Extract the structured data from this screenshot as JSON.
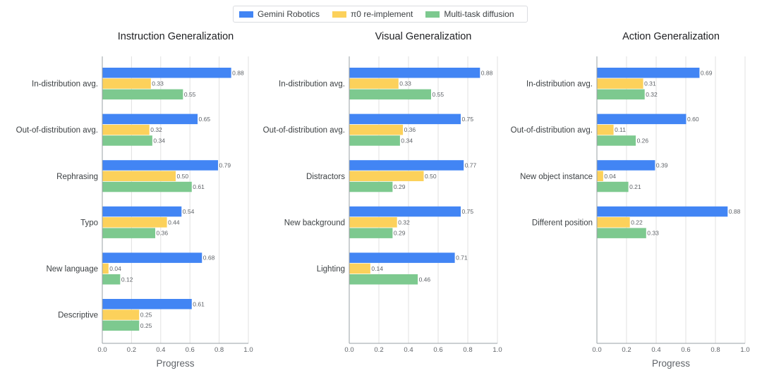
{
  "legend": [
    {
      "name": "Gemini Robotics",
      "color": "#4285f4"
    },
    {
      "name": "π0 re-implement",
      "color": "#fcd15b"
    },
    {
      "name": "Multi-task diffusion",
      "color": "#7dc98f"
    }
  ],
  "chart_data": [
    {
      "type": "bar",
      "orientation": "horizontal",
      "title": "Instruction Generalization",
      "xlabel": "Progress",
      "xlim": [
        0,
        1.0
      ],
      "xticks": [
        "0.0",
        "0.2",
        "0.4",
        "0.6",
        "0.8",
        "1.0"
      ],
      "grid": true,
      "categories": [
        "In-distribution avg.",
        "Out-of-distribution avg.",
        "Rephrasing",
        "Typo",
        "New language",
        "Descriptive"
      ],
      "series": [
        {
          "name": "Gemini Robotics",
          "values": [
            0.88,
            0.65,
            0.79,
            0.54,
            0.68,
            0.61
          ],
          "labels": [
            "0.88",
            "0.65",
            "0.79",
            "0.54",
            "0.68",
            "0.61"
          ]
        },
        {
          "name": "π0 re-implement",
          "values": [
            0.33,
            0.32,
            0.5,
            0.44,
            0.04,
            0.25
          ],
          "labels": [
            "0.33",
            "0.32",
            "0.50",
            "0.44",
            "0.04",
            "0.25"
          ]
        },
        {
          "name": "Multi-task diffusion",
          "values": [
            0.55,
            0.34,
            0.61,
            0.36,
            0.12,
            0.25
          ],
          "labels": [
            "0.55",
            "0.34",
            "0.61",
            "0.36",
            "0.12",
            "0.25"
          ]
        }
      ]
    },
    {
      "type": "bar",
      "orientation": "horizontal",
      "title": "Visual Generalization",
      "xlabel": "",
      "xlim": [
        0,
        1.0
      ],
      "xticks": [
        "0.0",
        "0.2",
        "0.4",
        "0.6",
        "0.8",
        "1.0"
      ],
      "grid": true,
      "categories": [
        "In-distribution avg.",
        "Out-of-distribution avg.",
        "Distractors",
        "New background",
        "Lighting"
      ],
      "series": [
        {
          "name": "Gemini Robotics",
          "values": [
            0.88,
            0.75,
            0.77,
            0.75,
            0.71
          ],
          "labels": [
            "0.88",
            "0.75",
            "0.77",
            "0.75",
            "0.71"
          ]
        },
        {
          "name": "π0 re-implement",
          "values": [
            0.33,
            0.36,
            0.5,
            0.32,
            0.14
          ],
          "labels": [
            "0.33",
            "0.36",
            "0.50",
            "0.32",
            "0.14"
          ]
        },
        {
          "name": "Multi-task diffusion",
          "values": [
            0.55,
            0.34,
            0.29,
            0.29,
            0.46
          ],
          "labels": [
            "0.55",
            "0.34",
            "0.29",
            "0.29",
            "0.46"
          ]
        }
      ]
    },
    {
      "type": "bar",
      "orientation": "horizontal",
      "title": "Action Generalization",
      "xlabel": "Progress",
      "xlim": [
        0,
        1.0
      ],
      "xticks": [
        "0.0",
        "0.2",
        "0.4",
        "0.6",
        "0.8",
        "1.0"
      ],
      "grid": true,
      "categories": [
        "In-distribution avg.",
        "Out-of-distribution avg.",
        "New object instance",
        "Different position"
      ],
      "series": [
        {
          "name": "Gemini Robotics",
          "values": [
            0.69,
            0.6,
            0.39,
            0.88
          ],
          "labels": [
            "0.69",
            "0.60",
            "0.39",
            "0.88"
          ]
        },
        {
          "name": "π0 re-implement",
          "values": [
            0.31,
            0.11,
            0.04,
            0.22
          ],
          "labels": [
            "0.31",
            "0.11",
            "0.04",
            "0.22"
          ]
        },
        {
          "name": "Multi-task diffusion",
          "values": [
            0.32,
            0.26,
            0.21,
            0.33
          ],
          "labels": [
            "0.32",
            "0.26",
            "0.21",
            "0.33"
          ]
        }
      ]
    }
  ]
}
